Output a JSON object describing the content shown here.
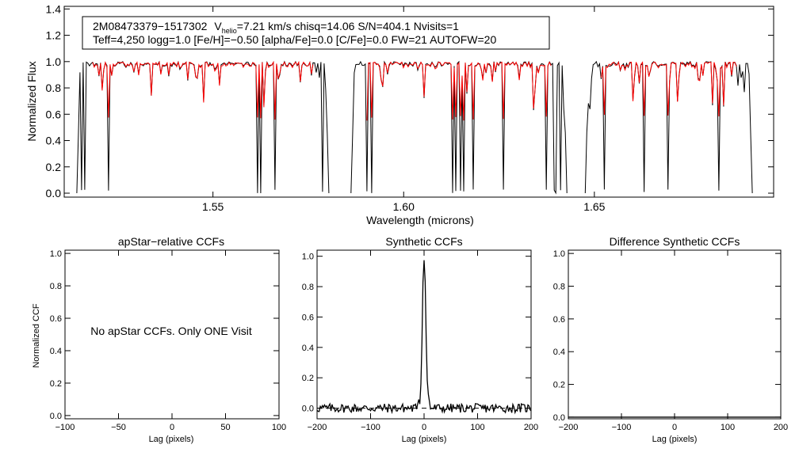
{
  "chart_data": [
    {
      "type": "line",
      "id": "spectrum",
      "xlabel": "Wavelength (microns)",
      "ylabel": "Normalized Flux",
      "xlim": [
        1.511,
        1.697
      ],
      "ylim": [
        -0.03,
        1.42
      ],
      "xticks": [
        "1.55",
        "1.60",
        "1.65"
      ],
      "yticks": [
        "0.0",
        "0.2",
        "0.4",
        "0.6",
        "0.8",
        "1.0",
        "1.2",
        "1.4"
      ],
      "legend": {
        "star": "2M08473379−1517302",
        "vhelio_prefix": "V",
        "vhelio_sub": "helio",
        "vhelio_suffix": "=7.21 km/s  chisq=14.06  S/N=404.1  Nvisits=1",
        "line2": "Teff=4,250 logg=1.0 [Fe/H]=−0.50 [alpha/Fe]=0.0 [C/Fe]=0.0 FW=21 AUTOFW=20"
      },
      "chips": [
        [
          1.5143,
          1.5804
        ],
        [
          1.5862,
          1.6428
        ],
        [
          1.6476,
          1.6914
        ]
      ],
      "series": [
        {
          "name": "Observed spectrum",
          "color": "#000000"
        },
        {
          "name": "Best-fit synthetic",
          "color": "#ff0000"
        }
      ],
      "deep_lines": [
        1.5155,
        1.5162,
        1.5226,
        1.5618,
        1.5627,
        1.5662,
        1.5788,
        1.5903,
        1.5915,
        1.6129,
        1.6138,
        1.6148,
        1.6158,
        1.6183,
        1.6263,
        1.6373,
        1.6393,
        1.6399,
        1.6405,
        1.6411,
        1.6526,
        1.6629,
        1.6693,
        1.6828,
        1.6837
      ]
    },
    {
      "type": "line",
      "id": "apstar-ccf",
      "title": "apStar−relative CCFs",
      "xlabel": "Lag (pixels)",
      "ylabel": "Normalized CCF",
      "xlim": [
        -100,
        100
      ],
      "ylim": [
        -0.02,
        1.02
      ],
      "xticks": [
        "−100",
        "−50",
        "0",
        "50",
        "100"
      ],
      "yticks": [
        "0.0",
        "0.2",
        "0.4",
        "0.6",
        "0.8",
        "1.0"
      ],
      "message": "No apStar CCFs.  Only ONE Visit"
    },
    {
      "type": "line",
      "id": "synthetic-ccf",
      "title": "Synthetic CCFs",
      "xlabel": "Lag (pixels)",
      "xlim": [
        -200,
        200
      ],
      "ylim": [
        -0.07,
        1.04
      ],
      "xticks": [
        "−200",
        "−100",
        "0",
        "100",
        "200"
      ],
      "yticks": [
        "0.0",
        "0.2",
        "0.4",
        "0.6",
        "0.8",
        "1.0"
      ],
      "peak": {
        "lag": 0,
        "value": 1.0
      },
      "baseline": 0.0
    },
    {
      "type": "line",
      "id": "diff-ccf",
      "title": "Difference Synthetic CCFs",
      "xlabel": "Lag (pixels)",
      "xlim": [
        -200,
        200
      ],
      "ylim": [
        -0.01,
        1.02
      ],
      "xticks": [
        "−200",
        "−100",
        "0",
        "100",
        "200"
      ],
      "yticks": [
        "0.0",
        "0.2",
        "0.4",
        "0.6",
        "0.8",
        "1.0"
      ],
      "baseline": 0.0
    }
  ]
}
